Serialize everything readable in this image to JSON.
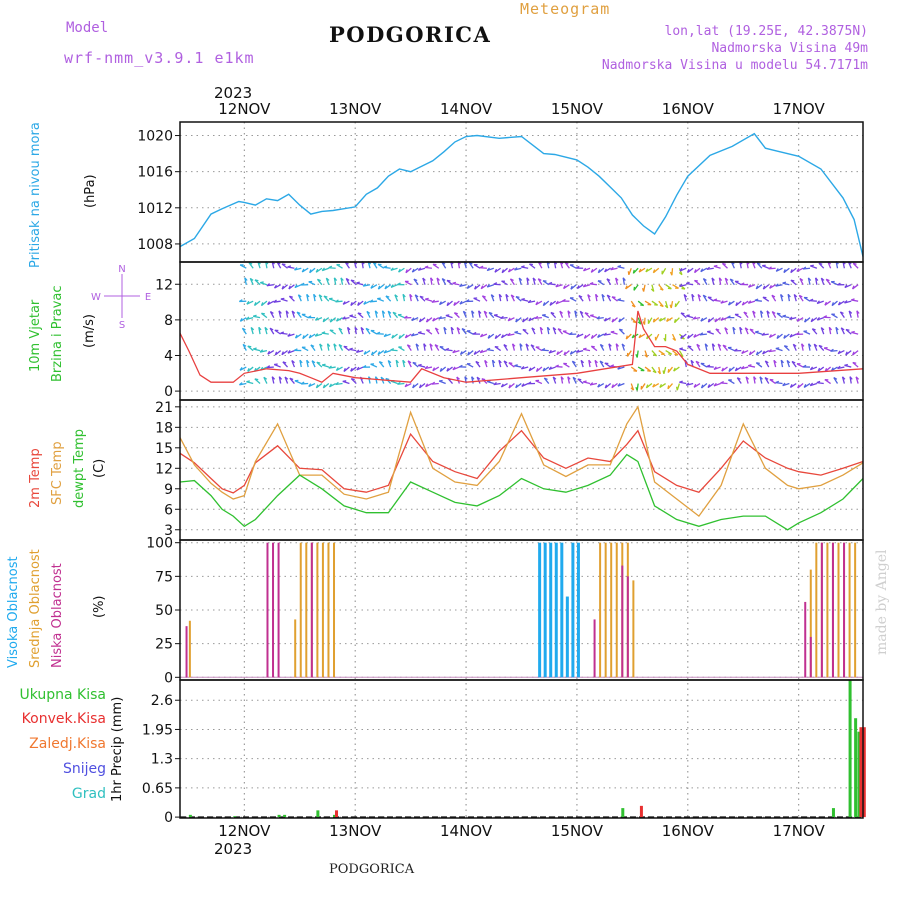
{
  "header": {
    "model_label": "Model",
    "model_name": "wrf-nmm_v3.9.1 e1km",
    "title": "PODGORICA",
    "subtitle": "Meteogram",
    "coords": "lon,lat (19.25E, 42.3875N)",
    "elevation": "Nadmorska Visina 49m",
    "model_elevation": "Nadmorska Visina u modelu 54.7171m"
  },
  "footer": {
    "station": "PODGORICA",
    "watermark": "made by Angel"
  },
  "year": "2023",
  "days": [
    "12NOV",
    "13NOV",
    "14NOV",
    "15NOV",
    "16NOV",
    "17NOV"
  ],
  "wind_compass": {
    "n": "N",
    "s": "S",
    "w": "W",
    "e": "E"
  },
  "panels": {
    "pressure": {
      "ylabel": "Pritisak na nivou mora",
      "unit": "(hPa)"
    },
    "wind": {
      "ylabel1": "10m Vjetar",
      "ylabel2": "Brzina i Pravac",
      "unit": "(m/s)"
    },
    "temp": {
      "l1": "2m Temp",
      "l2": "SFC Temp",
      "l3": "dewpt Temp",
      "unit": "(C)"
    },
    "cloud": {
      "l1": "Visoka Oblacnost",
      "l2": "Srednja Oblacnost",
      "l3": "Niska Oblacnost",
      "unit": "(%)"
    },
    "precip": {
      "l1": "Ukupna Kisa",
      "l2": "Konvek.Kisa",
      "l3": "Zaledj.Kisa",
      "l4": "Snijeg",
      "l5": "Grad",
      "unit": "1hr Precip (mm)"
    }
  },
  "colors": {
    "pressure": "#2ca8e6",
    "t2m": "#e8483c",
    "sfc": "#e0a040",
    "dew": "#30c030",
    "high_cloud": "#20aaee",
    "mid_cloud": "#e0a030",
    "low_cloud": "#c03090",
    "rain": "#30c030",
    "conv": "#e83030",
    "frz": "#f07830",
    "snow": "#5050e0",
    "grad": "#30c0c0",
    "wind_speed": "#e84040",
    "wind_gust": "#222222"
  },
  "chart_data": [
    {
      "type": "line",
      "name": "pressure",
      "x_unit": "days from 12 Nov 00UTC",
      "xlim": [
        -0.58,
        5.58
      ],
      "ylabel": "Pritisak na nivou mora (hPa)",
      "yticks": [
        1008,
        1012,
        1016,
        1020
      ],
      "ylim": [
        1006,
        1021.5
      ],
      "x": [
        -0.58,
        -0.45,
        -0.3,
        -0.2,
        -0.05,
        0.0,
        0.1,
        0.2,
        0.3,
        0.4,
        0.5,
        0.6,
        0.7,
        0.8,
        0.9,
        1.0,
        1.1,
        1.2,
        1.3,
        1.4,
        1.5,
        1.6,
        1.7,
        1.8,
        1.9,
        2.0,
        2.1,
        2.3,
        2.5,
        2.7,
        2.8,
        3.0,
        3.1,
        3.2,
        3.3,
        3.4,
        3.5,
        3.6,
        3.7,
        3.8,
        3.9,
        4.0,
        4.2,
        4.4,
        4.6,
        4.7,
        4.8,
        5.0,
        5.2,
        5.4,
        5.5,
        5.58
      ],
      "y": [
        1007.7,
        1008.6,
        1011.3,
        1011.9,
        1012.7,
        1012.6,
        1012.3,
        1013.0,
        1012.8,
        1013.5,
        1012.3,
        1011.3,
        1011.6,
        1011.7,
        1011.9,
        1012.1,
        1013.5,
        1014.2,
        1015.5,
        1016.3,
        1016.0,
        1016.6,
        1017.2,
        1018.2,
        1019.3,
        1019.9,
        1020.0,
        1019.7,
        1019.9,
        1018.0,
        1017.9,
        1017.3,
        1016.5,
        1015.5,
        1014.3,
        1013.1,
        1011.2,
        1010.0,
        1009.1,
        1011.0,
        1013.4,
        1015.5,
        1017.8,
        1018.8,
        1020.2,
        1018.6,
        1018.3,
        1017.7,
        1016.3,
        1013.1,
        1010.7,
        1006.6
      ]
    },
    {
      "type": "line",
      "name": "wind",
      "ylabel": "10m Vjetar Brzina i Pravac (m/s)",
      "yticks": [
        0,
        4,
        8,
        12
      ],
      "ylim": [
        -1,
        14.5
      ],
      "x": [
        -0.58,
        -0.5,
        -0.4,
        -0.3,
        -0.1,
        0.0,
        0.2,
        0.4,
        0.5,
        0.6,
        0.7,
        0.8,
        1.0,
        1.5,
        1.6,
        1.8,
        2.0,
        2.5,
        3.0,
        3.5,
        3.55,
        3.6,
        3.7,
        3.8,
        3.9,
        4.0,
        4.2,
        5.0,
        5.58
      ],
      "y": [
        6.5,
        4.5,
        1.8,
        1.0,
        1.0,
        2.0,
        2.5,
        2.3,
        2.0,
        1.5,
        1.0,
        2.0,
        1.5,
        1.0,
        2.5,
        1.5,
        1.0,
        1.5,
        2.0,
        3.0,
        9.0,
        7.0,
        5.0,
        5.0,
        4.5,
        3.0,
        2.0,
        2.0,
        2.5
      ]
    },
    {
      "type": "line",
      "name": "temperature",
      "ylabel": "(C)",
      "yticks": [
        3,
        6,
        9,
        12,
        15,
        18,
        21
      ],
      "ylim": [
        1.5,
        22
      ],
      "x": [
        -0.58,
        -0.45,
        -0.3,
        -0.2,
        -0.1,
        0.0,
        0.1,
        0.3,
        0.5,
        0.7,
        0.9,
        1.1,
        1.3,
        1.5,
        1.7,
        1.9,
        2.1,
        2.3,
        2.5,
        2.7,
        2.9,
        3.1,
        3.3,
        3.45,
        3.55,
        3.7,
        3.9,
        4.1,
        4.3,
        4.5,
        4.7,
        4.9,
        5.0,
        5.2,
        5.4,
        5.58
      ],
      "series": [
        {
          "name": "2m Temp",
          "values": [
            14.2,
            12.8,
            10.5,
            9.0,
            8.4,
            9.5,
            12.8,
            15.3,
            12.0,
            11.8,
            9.0,
            8.5,
            9.5,
            17.0,
            13.0,
            11.5,
            10.5,
            14.5,
            17.5,
            13.5,
            12.0,
            13.5,
            13.0,
            15.5,
            17.5,
            11.5,
            9.5,
            8.5,
            12.0,
            16.0,
            13.5,
            12.0,
            11.5,
            11.0,
            12.0,
            13.0
          ]
        },
        {
          "name": "SFC Temp",
          "values": [
            16.5,
            12.5,
            9.8,
            8.5,
            7.5,
            8.0,
            13.0,
            18.5,
            11.0,
            11.0,
            8.2,
            7.5,
            8.5,
            20.2,
            12.0,
            10.0,
            9.5,
            13.0,
            20.0,
            12.5,
            10.8,
            12.5,
            12.5,
            18.5,
            21.0,
            10.0,
            7.5,
            5.0,
            9.5,
            18.5,
            12.0,
            9.5,
            9.0,
            9.5,
            11.0,
            12.8
          ]
        },
        {
          "name": "dewpt Temp",
          "values": [
            10.0,
            10.2,
            8.0,
            6.0,
            5.0,
            3.5,
            4.5,
            8.0,
            11.0,
            9.0,
            6.5,
            5.5,
            5.5,
            10.0,
            8.5,
            7.0,
            6.5,
            8.0,
            10.5,
            9.0,
            8.5,
            9.5,
            11.0,
            14.0,
            13.0,
            6.5,
            4.5,
            3.5,
            4.5,
            5.0,
            5.0,
            3.0,
            4.0,
            5.5,
            7.5,
            10.5
          ]
        }
      ]
    },
    {
      "type": "bar",
      "name": "cloud",
      "ylabel": "(%)",
      "yticks": [
        0,
        25,
        50,
        75,
        100
      ],
      "ylim": [
        -2,
        102
      ],
      "series": [
        {
          "name": "Visoka Oblacnost",
          "x": [
            2.65,
            2.7,
            2.75,
            2.8,
            2.85,
            2.9,
            2.95,
            3.0
          ],
          "values": [
            100,
            100,
            100,
            100,
            100,
            60,
            100,
            100
          ]
        },
        {
          "name": "Srednja Oblacnost",
          "x": [
            -0.5,
            0.45,
            0.5,
            0.55,
            0.6,
            0.65,
            0.7,
            0.75,
            0.8,
            3.2,
            3.25,
            3.3,
            3.35,
            3.4,
            3.45,
            3.5,
            5.1,
            5.15,
            5.2,
            5.25,
            5.3,
            5.35,
            5.4,
            5.45,
            5.5
          ],
          "values": [
            42,
            43,
            100,
            100,
            100,
            100,
            100,
            100,
            100,
            100,
            100,
            100,
            100,
            100,
            100,
            72,
            80,
            100,
            100,
            100,
            100,
            100,
            100,
            100,
            100
          ]
        },
        {
          "name": "Niska Oblacnost",
          "x": [
            -0.53,
            0.2,
            0.25,
            0.3,
            0.6,
            3.15,
            3.4,
            3.45,
            5.05,
            5.1,
            5.2,
            5.3,
            5.4
          ],
          "values": [
            38,
            100,
            100,
            100,
            100,
            43,
            83,
            75,
            56,
            30,
            100,
            100,
            100
          ]
        }
      ]
    },
    {
      "type": "bar",
      "name": "precipitation",
      "ylabel": "1hr Precip (mm)",
      "yticks": [
        0,
        0.65,
        1.3,
        1.95,
        2.6
      ],
      "ylim": [
        -0.02,
        3.05
      ],
      "series": [
        {
          "name": "Ukupna Kisa",
          "x": [
            -0.5,
            -0.1,
            0.3,
            0.35,
            0.65,
            0.8,
            3.4,
            5.3,
            5.45,
            5.5,
            5.53
          ],
          "values": [
            0.05,
            0.02,
            0.05,
            0.05,
            0.15,
            0.05,
            0.2,
            0.2,
            3.05,
            2.2,
            1.9
          ]
        },
        {
          "name": "Konvek.Kisa",
          "x": [
            0.8,
            3.55,
            5.53,
            5.56
          ],
          "values": [
            0.15,
            0.25,
            2.0,
            2.0
          ]
        }
      ]
    }
  ]
}
